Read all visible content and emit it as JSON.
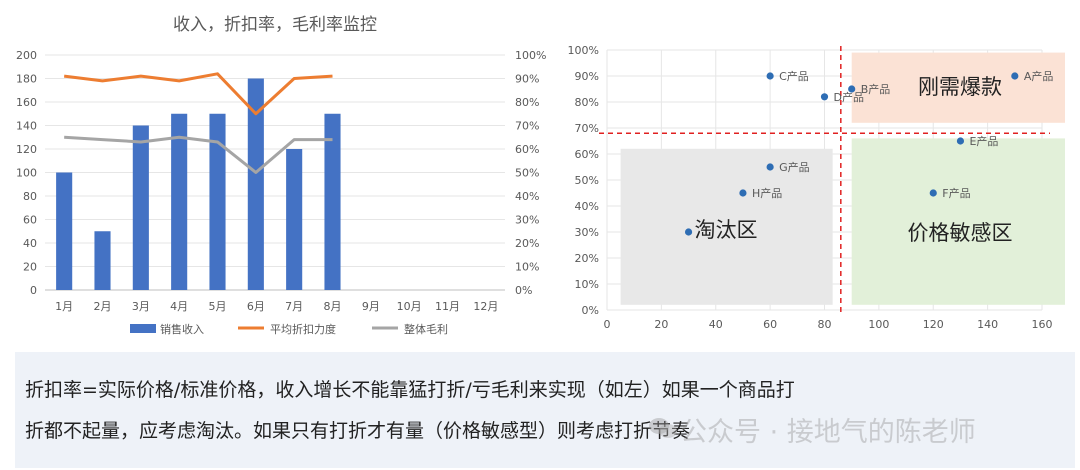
{
  "colors": {
    "bar": "#4472c4",
    "discount_line": "#ed7d31",
    "margin_line": "#a5a5a5",
    "scatter_point": "#2e6db4",
    "divider": "#e02020",
    "zone_hot": "#fbe2d5",
    "zone_price": "#e2f0d9",
    "zone_elim": "#e8e8e8",
    "caption_bg": "#eef2f8"
  },
  "chart_data": [
    {
      "type": "bar",
      "title": "收入，折扣率，毛利率监控",
      "categories": [
        "1月",
        "2月",
        "3月",
        "4月",
        "5月",
        "6月",
        "7月",
        "8月",
        "9月",
        "10月",
        "11月",
        "12月"
      ],
      "y_ticks": [
        "0",
        "20",
        "40",
        "60",
        "80",
        "100",
        "120",
        "140",
        "160",
        "180",
        "200"
      ],
      "y2_ticks": [
        "0%",
        "10%",
        "20%",
        "30%",
        "40%",
        "50%",
        "60%",
        "70%",
        "80%",
        "90%",
        "100%"
      ],
      "ylim": [
        0,
        200
      ],
      "y2lim": [
        0,
        1
      ],
      "grid": true,
      "legend_position": "bottom",
      "series": [
        {
          "name": "销售收入",
          "kind": "bar",
          "axis": "left",
          "values": [
            100,
            50,
            140,
            150,
            150,
            180,
            120,
            150,
            null,
            null,
            null,
            null
          ]
        },
        {
          "name": "平均折扣力度",
          "kind": "line",
          "axis": "right",
          "values": [
            0.91,
            0.89,
            0.91,
            0.89,
            0.92,
            0.75,
            0.9,
            0.91,
            null,
            null,
            null,
            null
          ]
        },
        {
          "name": "整体毛利",
          "kind": "line",
          "axis": "right",
          "values": [
            0.65,
            0.64,
            0.63,
            0.65,
            0.63,
            0.5,
            0.64,
            0.64,
            null,
            null,
            null,
            null
          ]
        }
      ]
    },
    {
      "type": "scatter",
      "xlim": [
        0,
        160
      ],
      "ylim": [
        0,
        1
      ],
      "x_ticks": [
        "0",
        "20",
        "40",
        "60",
        "80",
        "100",
        "120",
        "140",
        "160"
      ],
      "y_ticks": [
        "0%",
        "10%",
        "20%",
        "30%",
        "40%",
        "50%",
        "60%",
        "70%",
        "80%",
        "90%",
        "100%"
      ],
      "grid": true,
      "divider_x": 86,
      "divider_y": 0.68,
      "points": [
        {
          "label": "A产品",
          "x": 150,
          "y": 0.9
        },
        {
          "label": "B产品",
          "x": 90,
          "y": 0.85
        },
        {
          "label": "C产品",
          "x": 60,
          "y": 0.9
        },
        {
          "label": "D产品",
          "x": 80,
          "y": 0.82
        },
        {
          "label": "E产品",
          "x": 130,
          "y": 0.65
        },
        {
          "label": "F产品",
          "x": 120,
          "y": 0.45
        },
        {
          "label": "G产品",
          "x": 60,
          "y": 0.55
        },
        {
          "label": "H产品",
          "x": 50,
          "y": 0.45
        },
        {
          "label": "",
          "x": 30,
          "y": 0.3
        }
      ],
      "zones": [
        {
          "label": "刚需爆款",
          "x0": 90,
          "x1": 170,
          "y0": 0.72,
          "y1": 0.99,
          "color_key": "zone_hot"
        },
        {
          "label": "价格敏感区",
          "x0": 90,
          "x1": 170,
          "y0": 0.02,
          "y1": 0.66,
          "color_key": "zone_price"
        },
        {
          "label": "淘汰区",
          "x0": 5,
          "x1": 83,
          "y0": 0.02,
          "y1": 0.62,
          "color_key": "zone_elim"
        }
      ]
    }
  ],
  "caption": {
    "line1": "折扣率=实际价格/标准价格，收入增长不能靠猛打折/亏毛利来实现（如左）如果一个商品打",
    "line2": "折都不起量，应考虑淘汰。如果只有打折才有量（价格敏感型）则考虑打折节奏"
  },
  "watermark": {
    "text": "公众号 · 接地气的陈老师",
    "icon": "wechat-icon"
  }
}
